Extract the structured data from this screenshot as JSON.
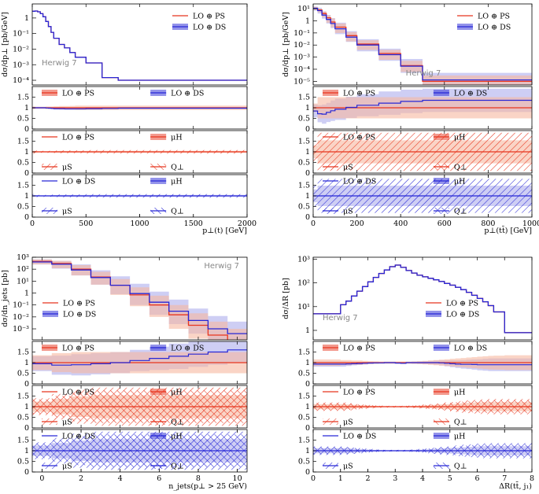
{
  "figure": {
    "label_herwig": "Herwig 7"
  },
  "colors": {
    "ps": "#e8351e",
    "ds": "#2727d6",
    "ps_band": "#f7b8a0",
    "ds_band": "#b3b3ee"
  },
  "legend": {
    "ps": "LO ⊕ PS",
    "ds": "LO ⊕ DS",
    "mu_h": "μH",
    "mu_s": "μS",
    "q_perp": "Q⊥"
  },
  "chart_data": [
    {
      "id": "ptt",
      "type": "line",
      "title": "",
      "xlabel": "p⊥(t) [GeV]",
      "ylabel": "dσ/dp⊥ [pb/GeV]",
      "xlim": [
        0,
        2000
      ],
      "ylim": [
        5e-05,
        8
      ],
      "yscale": "log",
      "xticks": [
        0,
        500,
        1000,
        1500,
        2000
      ],
      "yticks": [
        {
          "v": 0.0001,
          "t": "10⁻⁴"
        },
        {
          "v": 0.001,
          "t": "10⁻³"
        },
        {
          "v": 0.01,
          "t": "10⁻²"
        },
        {
          "v": 0.1,
          "t": "10⁻¹"
        },
        {
          "v": 1,
          "t": "1"
        }
      ],
      "edges": [
        0,
        25,
        50,
        75,
        100,
        125,
        150,
        175,
        200,
        250,
        300,
        350,
        400,
        500,
        650,
        800,
        2000
      ],
      "main": {
        "ps": [
          2.7,
          2.8,
          2.5,
          1.9,
          1.2,
          0.6,
          0.28,
          0.12,
          0.05,
          0.02,
          0.012,
          0.006,
          0.003,
          0.0013,
          0.00015,
          0.0001
        ],
        "ds": [
          2.7,
          2.8,
          2.5,
          1.9,
          1.2,
          0.6,
          0.28,
          0.12,
          0.05,
          0.02,
          0.012,
          0.006,
          0.003,
          0.0013,
          0.00015,
          0.0001
        ],
        "ps_band": 0.03,
        "ds_band": 0.03
      },
      "ratio_main": {
        "ps_dev": [
          0.06,
          0.05,
          0.05,
          0.05,
          0.05,
          0.06,
          0.06,
          0.06,
          0.07,
          0.08,
          0.08,
          0.09,
          0.1,
          0.1,
          0.1,
          0.1
        ],
        "ds_val": [
          1,
          1,
          1,
          1,
          1,
          0.99,
          0.98,
          0.97,
          0.96,
          0.96,
          0.95,
          0.95,
          0.95,
          0.96,
          0.97,
          0.98
        ],
        "ds_dev": [
          0.04,
          0.04,
          0.04,
          0.04,
          0.04,
          0.04,
          0.04,
          0.04,
          0.04,
          0.05,
          0.05,
          0.05,
          0.05,
          0.05,
          0.05,
          0.05
        ]
      },
      "ratio_ps": {
        "dev": [
          0.08,
          0.06,
          0.05,
          0.05,
          0.05,
          0.05,
          0.05,
          0.06,
          0.06,
          0.07,
          0.07,
          0.07,
          0.07,
          0.08,
          0.08,
          0.08
        ]
      },
      "ratio_ds": {
        "dev": [
          0.08,
          0.06,
          0.05,
          0.05,
          0.05,
          0.05,
          0.05,
          0.06,
          0.06,
          0.07,
          0.07,
          0.07,
          0.07,
          0.08,
          0.08,
          0.08
        ]
      },
      "herwig_pos": "left",
      "legend_pos": "top-right"
    },
    {
      "id": "pttt",
      "type": "line",
      "title": "",
      "xlabel": "p⊥(tt̄) [GeV]",
      "ylabel": "dσ/dp⊥ [pb/GeV]",
      "xlim": [
        0,
        1000
      ],
      "ylim": [
        5e-06,
        25
      ],
      "yscale": "log",
      "xticks": [
        0,
        200,
        400,
        600,
        800,
        1000
      ],
      "yticks": [
        {
          "v": 1e-05,
          "t": "10⁻⁵"
        },
        {
          "v": 0.0001,
          "t": "10⁻⁴"
        },
        {
          "v": 0.001,
          "t": "10⁻³"
        },
        {
          "v": 0.01,
          "t": "10⁻²"
        },
        {
          "v": 0.1,
          "t": "10⁻¹"
        },
        {
          "v": 1,
          "t": "1"
        },
        {
          "v": 10,
          "t": "10¹"
        }
      ],
      "edges": [
        0,
        20,
        40,
        60,
        80,
        100,
        150,
        200,
        300,
        400,
        500,
        1000
      ],
      "main": {
        "ps": [
          11,
          8,
          4,
          1.8,
          0.8,
          0.3,
          0.06,
          0.012,
          0.002,
          0.0002,
          1e-05
        ],
        "ds": [
          11,
          7,
          3,
          1.3,
          0.6,
          0.22,
          0.045,
          0.01,
          0.0016,
          0.00018,
          1.3e-05
        ],
        "ps_lo": [
          8,
          5,
          2,
          0.7,
          0.3,
          0.1,
          0.02,
          0.004,
          0.0006,
          6e-05,
          3e-06
        ],
        "ps_hi": [
          14,
          10,
          6,
          3,
          1.6,
          0.6,
          0.12,
          0.025,
          0.004,
          0.0005,
          3e-05
        ],
        "ds_lo": [
          7,
          4,
          1.5,
          0.6,
          0.25,
          0.08,
          0.018,
          0.003,
          0.0005,
          5e-05,
          4e-06
        ],
        "ds_hi": [
          15,
          12,
          6,
          3,
          1.7,
          0.7,
          0.14,
          0.03,
          0.005,
          0.0007,
          5e-05
        ]
      },
      "ratio_main": {
        "ps_dev": [
          0.2,
          0.5,
          0.5,
          0.5,
          0.5,
          0.5,
          0.5,
          0.5,
          0.5,
          0.5,
          0.5
        ],
        "ds_val": [
          0.85,
          0.72,
          0.7,
          0.78,
          0.86,
          0.93,
          1.02,
          1.12,
          1.22,
          1.3,
          1.35
        ],
        "ds_dev": [
          0.3,
          0.4,
          0.45,
          0.45,
          0.48,
          0.5,
          0.5,
          0.52,
          0.55,
          0.55,
          0.55
        ]
      },
      "ratio_ps": {
        "dev": [
          0.5,
          0.9,
          0.9,
          0.9,
          0.9,
          0.9,
          0.9,
          0.9,
          0.9,
          0.9,
          0.9
        ]
      },
      "ratio_ds": {
        "dev": [
          0.5,
          0.8,
          0.8,
          0.8,
          0.8,
          0.8,
          0.8,
          0.8,
          0.8,
          0.8,
          0.8
        ]
      },
      "herwig_pos": "right",
      "legend_pos": "top-right"
    },
    {
      "id": "njets",
      "type": "line",
      "title": "",
      "xlabel": "n_jets(p⊥ > 25 GeV)",
      "ylabel": "dσ/dn_jets [pb]",
      "xlim": [
        -0.5,
        10.5
      ],
      "ylim": [
        0.00012,
        1000
      ],
      "yscale": "log",
      "xticks": [
        0,
        2,
        4,
        6,
        8,
        10
      ],
      "yticks": [
        {
          "v": 0.001,
          "t": "10⁻³"
        },
        {
          "v": 0.01,
          "t": "10⁻²"
        },
        {
          "v": 0.1,
          "t": "10⁻¹"
        },
        {
          "v": 1,
          "t": "1"
        },
        {
          "v": 10,
          "t": "10¹"
        },
        {
          "v": 100,
          "t": "10²"
        },
        {
          "v": 1000,
          "t": "10³"
        }
      ],
      "edges": [
        -0.5,
        0.5,
        1.5,
        2.5,
        3.5,
        4.5,
        5.5,
        6.5,
        7.5,
        8.5,
        9.5,
        10.5
      ],
      "main": {
        "ps": [
          450,
          300,
          100,
          22,
          4.5,
          0.7,
          0.1,
          0.015,
          0.002,
          0.0003,
          0.0001
        ],
        "ds": [
          400,
          260,
          85,
          20,
          4.5,
          0.9,
          0.17,
          0.03,
          0.005,
          0.001,
          0.0004
        ],
        "ps_lo": [
          250,
          120,
          30,
          5,
          0.7,
          0.08,
          0.01,
          0.001,
          0.00015,
          2e-05,
          1e-05
        ],
        "ps_hi": [
          650,
          500,
          220,
          60,
          15,
          3,
          0.6,
          0.1,
          0.02,
          0.004,
          0.001
        ],
        "ds_lo": [
          250,
          110,
          30,
          5,
          0.8,
          0.1,
          0.015,
          0.0025,
          0.0004,
          7e-05,
          3e-05
        ],
        "ds_hi": [
          650,
          500,
          250,
          80,
          25,
          6,
          1.3,
          0.28,
          0.05,
          0.012,
          0.004
        ]
      },
      "ratio_main": {
        "ps_dev": [
          0.35,
          0.45,
          0.5,
          0.5,
          0.5,
          0.5,
          0.5,
          0.5,
          0.5,
          0.5,
          0.5
        ],
        "ds_val": [
          0.95,
          0.88,
          0.9,
          0.95,
          1.0,
          1.1,
          1.2,
          1.3,
          1.4,
          1.5,
          1.6
        ],
        "ds_dev": [
          0.35,
          0.45,
          0.5,
          0.5,
          0.5,
          0.5,
          0.55,
          0.6,
          0.6,
          0.6,
          0.6
        ]
      },
      "ratio_ps": {
        "dev": [
          0.4,
          0.6,
          0.8,
          0.9,
          0.9,
          0.9,
          0.9,
          0.9,
          0.9,
          0.9,
          0.9
        ]
      },
      "ratio_ds": {
        "dev": [
          0.4,
          0.6,
          0.8,
          0.9,
          0.9,
          0.9,
          0.9,
          0.9,
          0.9,
          0.9,
          0.9
        ]
      },
      "herwig_pos": "top-right",
      "legend_pos": "bottom-left"
    },
    {
      "id": "dr",
      "type": "line",
      "title": "",
      "xlabel": "ΔR(tt̄, j₁)",
      "ylabel": "dσ/ΔR [pb]",
      "xlim": [
        0,
        8
      ],
      "ylim": [
        0.4,
        1200
      ],
      "yscale": "log",
      "xticks": [
        0,
        1,
        2,
        3,
        4,
        5,
        6,
        7,
        8
      ],
      "yticks": [
        {
          "v": 1,
          "t": "1"
        },
        {
          "v": 10,
          "t": "10¹"
        },
        {
          "v": 100,
          "t": "10²"
        },
        {
          "v": 1000,
          "t": "10³"
        }
      ],
      "edges": [
        0,
        1,
        1.2,
        1.4,
        1.6,
        1.8,
        2,
        2.2,
        2.4,
        2.6,
        2.8,
        3.0,
        3.2,
        3.4,
        3.6,
        3.8,
        4.0,
        4.2,
        4.4,
        4.6,
        4.8,
        5.0,
        5.2,
        5.4,
        5.6,
        5.8,
        6.0,
        6.2,
        6.4,
        6.6,
        7.0,
        8.0
      ],
      "main": {
        "ps": [
          5,
          12,
          17,
          28,
          45,
          70,
          110,
          170,
          250,
          350,
          480,
          560,
          450,
          330,
          260,
          210,
          180,
          155,
          135,
          115,
          95,
          80,
          65,
          52,
          40,
          30,
          22,
          16,
          11,
          6,
          0.8
        ],
        "ds": [
          5,
          12,
          17,
          28,
          45,
          70,
          110,
          170,
          250,
          350,
          480,
          560,
          450,
          330,
          260,
          210,
          180,
          155,
          135,
          115,
          95,
          80,
          65,
          52,
          40,
          30,
          22,
          16,
          11,
          6,
          0.8
        ],
        "ps_band": 0.06,
        "ds_band": 0.06
      },
      "ratio_main": {
        "ps_dev": [
          0.15,
          0.12,
          0.12,
          0.1,
          0.1,
          0.08,
          0.07,
          0.06,
          0.05,
          0.05,
          0.05,
          0.05,
          0.05,
          0.05,
          0.06,
          0.07,
          0.08,
          0.1,
          0.12,
          0.14,
          0.16,
          0.18,
          0.2,
          0.22,
          0.24,
          0.26,
          0.28,
          0.3,
          0.32,
          0.33,
          0.35
        ],
        "ds_val": [
          0.93,
          0.93,
          0.94,
          0.95,
          0.96,
          0.97,
          0.98,
          0.99,
          0.99,
          1.0,
          1.0,
          0.98,
          0.97,
          1.0,
          1.0,
          1.0,
          1.0,
          1.0,
          1.0,
          0.99,
          0.97,
          0.95,
          0.93,
          0.92,
          0.92,
          0.91,
          0.9,
          0.9,
          0.9,
          0.9,
          0.9
        ],
        "ds_dev": [
          0.12,
          0.12,
          0.1,
          0.08,
          0.07,
          0.06,
          0.05,
          0.05,
          0.04,
          0.04,
          0.04,
          0.04,
          0.04,
          0.04,
          0.05,
          0.06,
          0.07,
          0.08,
          0.1,
          0.12,
          0.14,
          0.16,
          0.18,
          0.2,
          0.22,
          0.24,
          0.26,
          0.28,
          0.3,
          0.3,
          0.3
        ]
      },
      "ratio_ps": {
        "dev": [
          0.2,
          0.2,
          0.18,
          0.15,
          0.12,
          0.1,
          0.08,
          0.06,
          0.05,
          0.04,
          0.04,
          0.04,
          0.04,
          0.05,
          0.06,
          0.08,
          0.1,
          0.12,
          0.15,
          0.18,
          0.2,
          0.22,
          0.25,
          0.28,
          0.3,
          0.32,
          0.34,
          0.35,
          0.36,
          0.36,
          0.36
        ]
      },
      "ratio_ds": {
        "dev": [
          0.2,
          0.2,
          0.18,
          0.15,
          0.12,
          0.1,
          0.08,
          0.06,
          0.05,
          0.04,
          0.04,
          0.04,
          0.04,
          0.05,
          0.06,
          0.08,
          0.1,
          0.12,
          0.15,
          0.18,
          0.2,
          0.22,
          0.25,
          0.28,
          0.3,
          0.32,
          0.34,
          0.35,
          0.36,
          0.36,
          0.36
        ]
      },
      "herwig_pos": "left",
      "legend_pos": "right"
    }
  ]
}
